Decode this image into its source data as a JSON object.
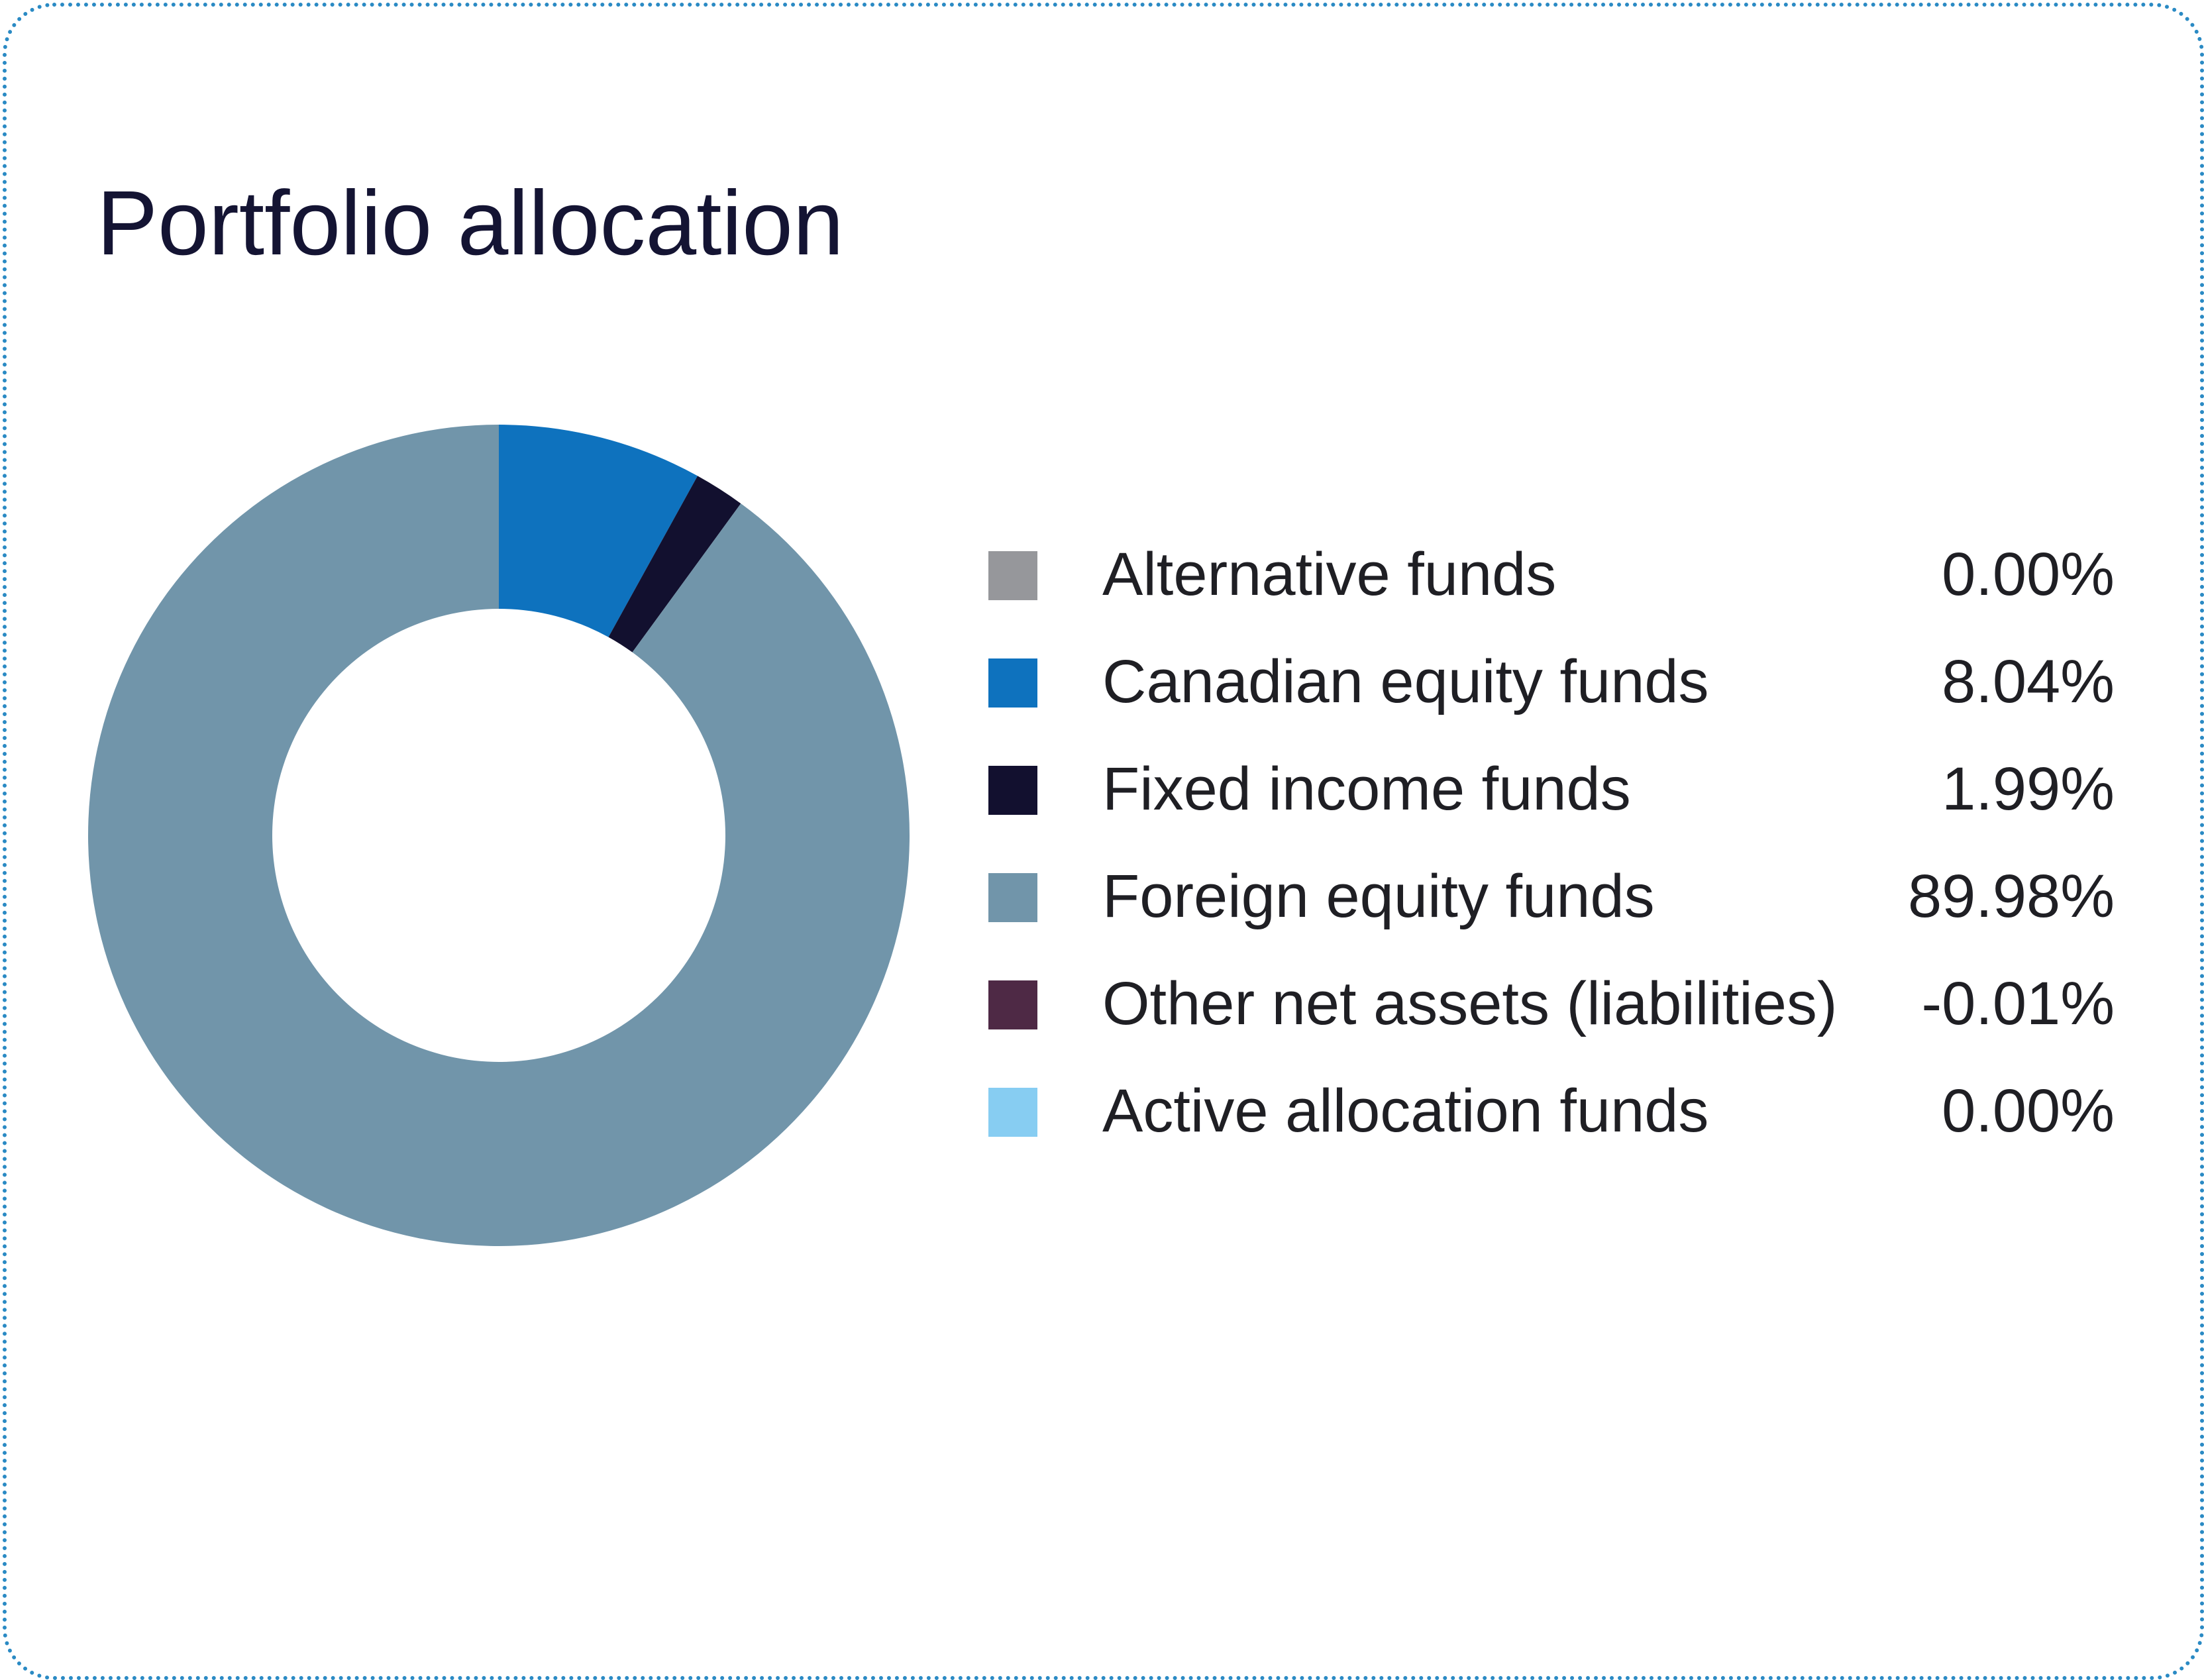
{
  "card": {
    "title": "Portfolio allocation",
    "border_color": "#2a8ac4"
  },
  "chart_data": {
    "type": "pie",
    "variant": "donut",
    "start": "12 o'clock",
    "direction": "clockwise",
    "title": "Portfolio allocation",
    "legend_position": "right",
    "series": [
      {
        "name": "Alternative funds",
        "value": 0.0,
        "label": "0.00%",
        "color": "#96979b"
      },
      {
        "name": "Canadian equity funds",
        "value": 8.04,
        "label": "8.04%",
        "color": "#0e72be"
      },
      {
        "name": "Fixed income funds",
        "value": 1.99,
        "label": "1.99%",
        "color": "#12102f"
      },
      {
        "name": "Foreign equity funds",
        "value": 89.98,
        "label": "89.98%",
        "color": "#7195aa"
      },
      {
        "name": "Other net assets (liabilities)",
        "value": -0.01,
        "label": "-0.01%",
        "color": "#4e2945"
      },
      {
        "name": "Active allocation funds",
        "value": 0.0,
        "label": "0.00%",
        "color": "#87cdf2"
      }
    ]
  }
}
